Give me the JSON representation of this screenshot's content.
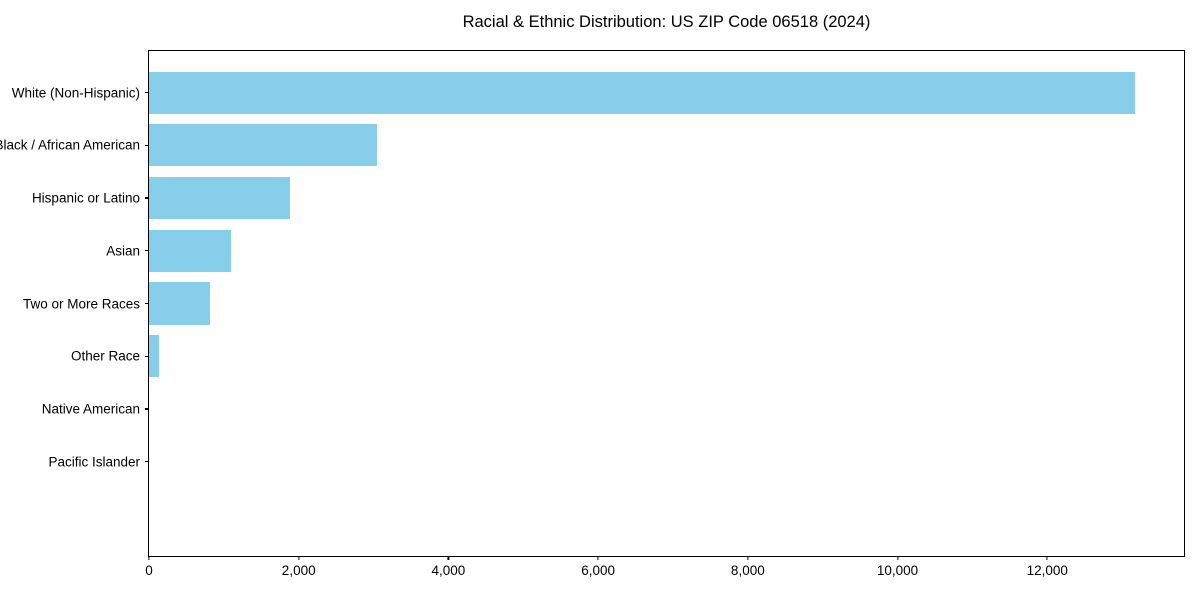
{
  "chart_data": {
    "type": "bar",
    "orientation": "horizontal",
    "title": "Racial & Ethnic Distribution: US ZIP Code 06518 (2024)",
    "categories": [
      "White (Non-Hispanic)",
      "Black / African American",
      "Hispanic or Latino",
      "Asian",
      "Two or More Races",
      "Other Race",
      "Native American",
      "Pacific Islander"
    ],
    "values": [
      13170,
      3050,
      1880,
      1090,
      810,
      130,
      0,
      0
    ],
    "xlabel": "",
    "ylabel": "",
    "xlim": [
      0,
      13827
    ],
    "xticks": [
      0,
      2000,
      4000,
      6000,
      8000,
      10000,
      12000
    ],
    "xtick_labels": [
      "0",
      "2,000",
      "4,000",
      "6,000",
      "8,000",
      "10,000",
      "12,000"
    ],
    "bar_color": "#87CEEB",
    "text_color": "#000000",
    "spine_color": "#000000",
    "grid": false,
    "legend": "none"
  }
}
